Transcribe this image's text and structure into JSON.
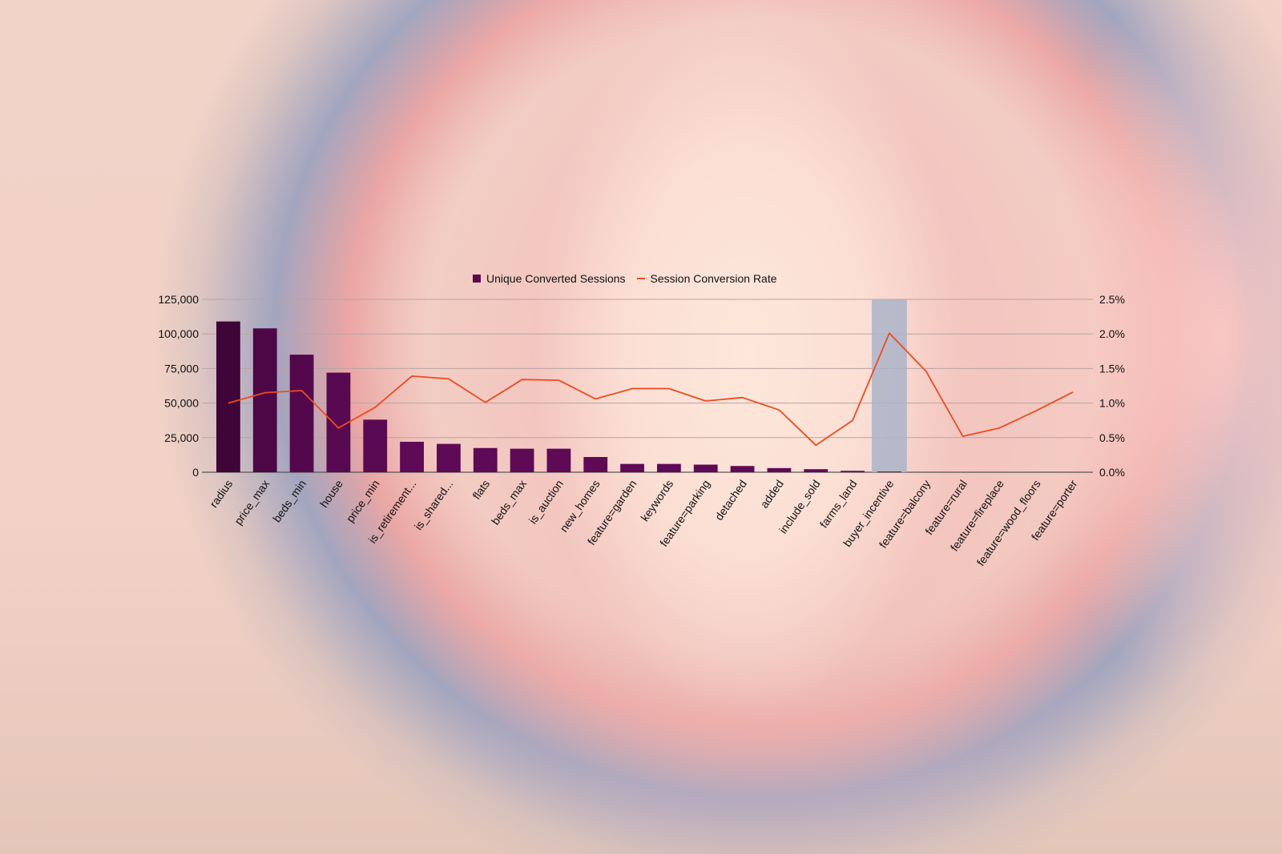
{
  "chart_data": {
    "type": "bar",
    "categories": [
      "radius",
      "price_max",
      "beds_min",
      "house",
      "price_min",
      "is_retirement...",
      "is_shared...",
      "flats",
      "beds_max",
      "is_auction",
      "new_homes",
      "feature=garden",
      "keywords",
      "feature=parking",
      "detached",
      "added",
      "include_sold",
      "farms_land",
      "buyer_incentive",
      "feature=balcony",
      "feature=rural",
      "feature=fireplace",
      "feature=wood_floors",
      "feature=porter"
    ],
    "series": [
      {
        "name": "Unique Converted Sessions",
        "type": "bar",
        "axis": "left",
        "color": "#5a0a52",
        "values": [
          109000,
          104000,
          85000,
          72000,
          38000,
          22000,
          20500,
          17500,
          17000,
          17000,
          11000,
          6000,
          6000,
          5500,
          4500,
          3000,
          2200,
          1000,
          500,
          0,
          0,
          0,
          0,
          0
        ]
      },
      {
        "name": "Session Conversion Rate",
        "type": "line",
        "axis": "right",
        "color": "#ef4a1e",
        "values": [
          1.0,
          1.15,
          1.18,
          0.64,
          0.94,
          1.39,
          1.35,
          1.01,
          1.34,
          1.33,
          1.06,
          1.21,
          1.21,
          1.03,
          1.08,
          0.9,
          0.39,
          0.75,
          2.01,
          1.46,
          0.52,
          0.64,
          0.89,
          1.16
        ]
      }
    ],
    "y_left": {
      "min": 0,
      "max": 125000,
      "ticks": [
        "0",
        "25,000",
        "50,000",
        "75,000",
        "100,000",
        "125,000"
      ]
    },
    "y_right": {
      "min": 0,
      "max": 2.5,
      "ticks": [
        "0.0%",
        "0.5%",
        "1.0%",
        "1.5%",
        "2.0%",
        "2.5%"
      ]
    },
    "highlight_category": "buyer_incentive",
    "highlight_color": "#aab4c8",
    "grid": true,
    "legend_position": "top-center",
    "xlabel": "",
    "ylabel": "",
    "title": ""
  }
}
